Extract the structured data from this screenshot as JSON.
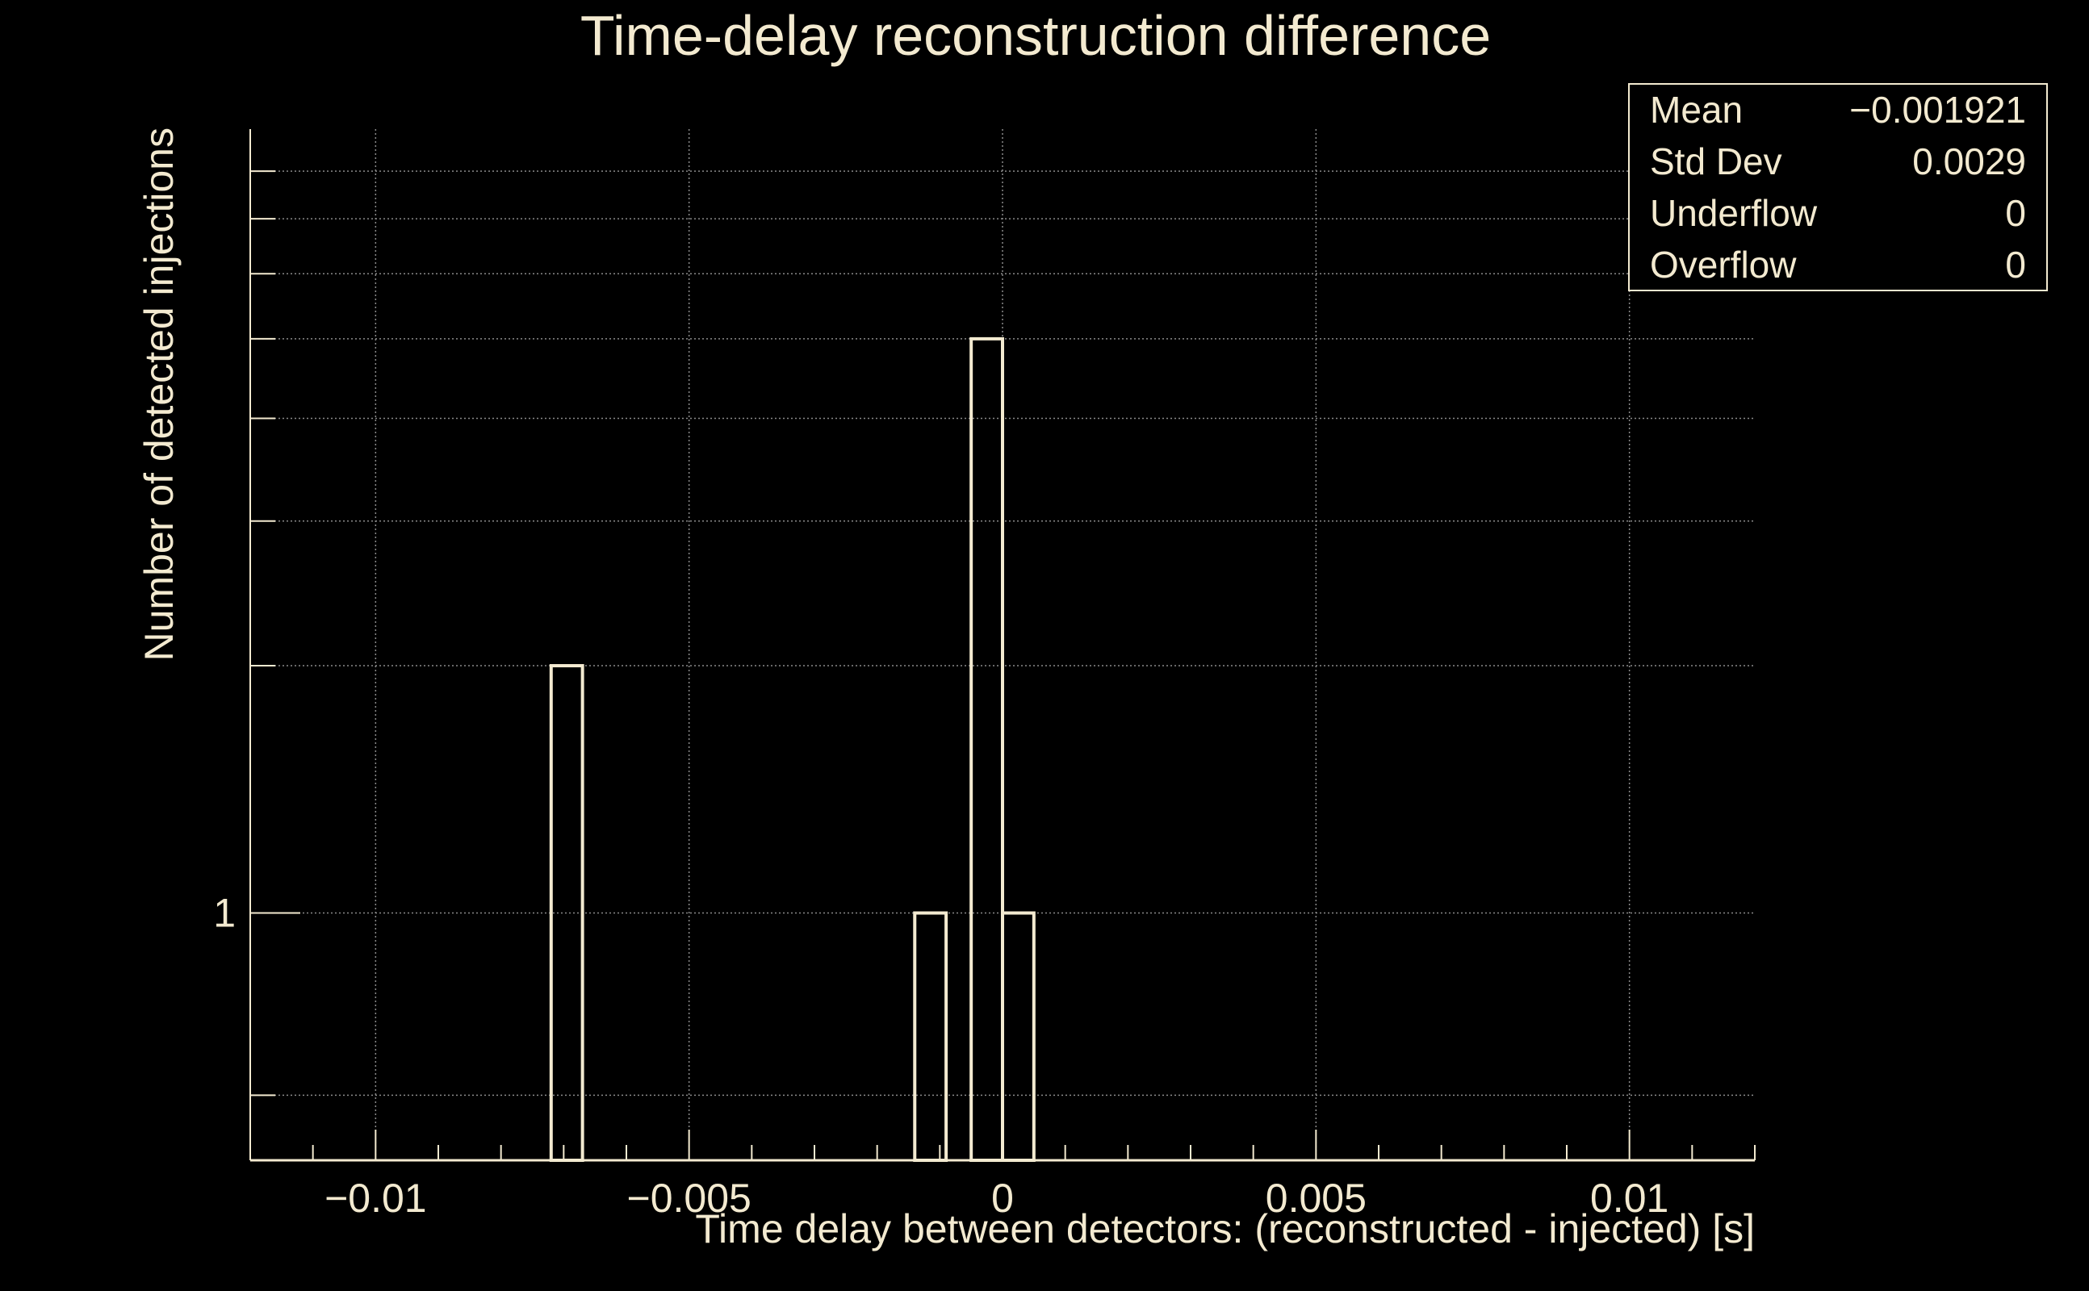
{
  "colors": {
    "background": "#000000",
    "foreground": "#f3ead0",
    "grid": "#8a8a8a"
  },
  "stats": {
    "rows": [
      {
        "label": "Mean",
        "value": "−0.001921"
      },
      {
        "label": "Std Dev",
        "value": "0.0029"
      },
      {
        "label": "Underflow",
        "value": "0"
      },
      {
        "label": "Overflow",
        "value": "0"
      }
    ]
  },
  "chart_data": {
    "type": "histogram",
    "title": "Time-delay reconstruction difference",
    "xlabel": "Time delay between detectors: (reconstructed - injected) [s]",
    "ylabel": "Number of detected injections",
    "xlim": [
      -0.012,
      0.012
    ],
    "ylim": [
      0.5,
      9
    ],
    "y_scale": "log",
    "grid": true,
    "x_ticks": [
      {
        "value": -0.01,
        "label": "−0.01"
      },
      {
        "value": -0.005,
        "label": "−0.005"
      },
      {
        "value": 0,
        "label": "0"
      },
      {
        "value": 0.005,
        "label": "0.005"
      },
      {
        "value": 0.01,
        "label": "0.01"
      }
    ],
    "y_ticks": [
      {
        "value": 1,
        "label": "1"
      }
    ],
    "y_minor_ticks": [
      0.6,
      2,
      3,
      4,
      5,
      6,
      7,
      8
    ],
    "bins": [
      {
        "x0": -0.0072,
        "x1": -0.0067,
        "count": 2
      },
      {
        "x0": -0.0014,
        "x1": -0.0009,
        "count": 1
      },
      {
        "x0": -0.0005,
        "x1": 0.0,
        "count": 5
      },
      {
        "x0": 0.0,
        "x1": 0.0005,
        "count": 1
      }
    ]
  }
}
